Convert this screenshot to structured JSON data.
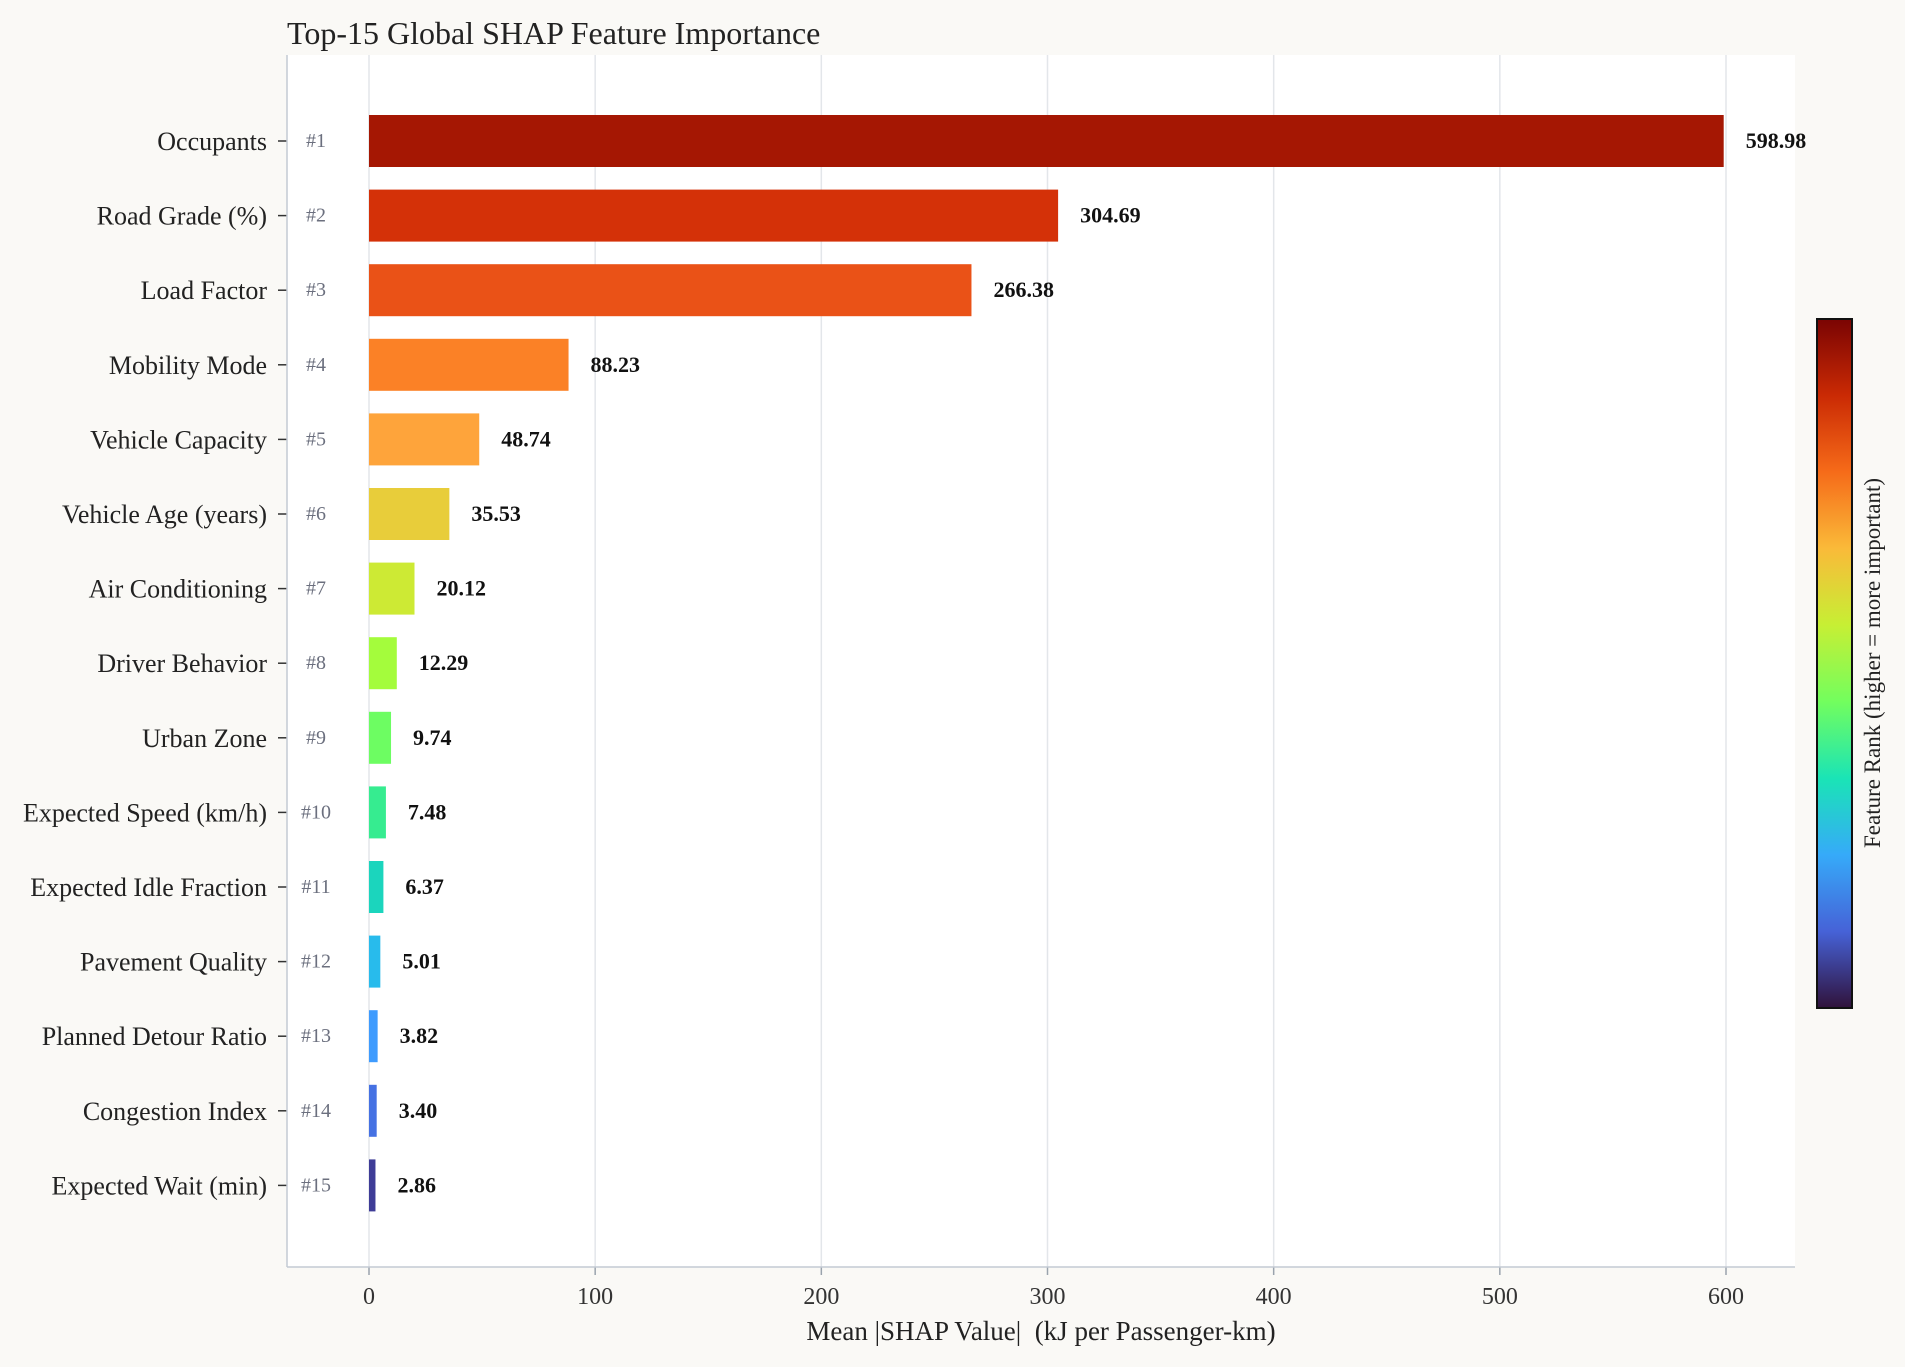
{
  "chart_data": {
    "type": "bar",
    "orientation": "horizontal",
    "title": "Top-15 Global SHAP Feature Importance",
    "xlabel": "Mean |SHAP Value|  (kJ per Passenger-km)",
    "ylabel": "",
    "xlim": [
      -35,
      630
    ],
    "xticks": [
      0,
      100,
      200,
      300,
      400,
      500,
      600
    ],
    "grid": "vertical",
    "categories": [
      "Occupants",
      "Road Grade (%)",
      "Load Factor",
      "Mobility Mode",
      "Vehicle Capacity",
      "Vehicle Age (years)",
      "Air Conditioning",
      "Driver Behavior",
      "Urban Zone",
      "Expected Speed (km/h)",
      "Expected Idle Fraction",
      "Pavement Quality",
      "Planned Detour Ratio",
      "Congestion Index",
      "Expected Wait (min)"
    ],
    "ranks": [
      "#1",
      "#2",
      "#3",
      "#4",
      "#5",
      "#6",
      "#7",
      "#8",
      "#9",
      "#10",
      "#11",
      "#12",
      "#13",
      "#14",
      "#15"
    ],
    "values": [
      598.98,
      304.69,
      266.38,
      88.23,
      48.74,
      35.53,
      20.12,
      12.29,
      9.74,
      7.48,
      6.37,
      5.01,
      3.82,
      3.4,
      2.86
    ],
    "value_labels": [
      "598.98",
      "304.69",
      "266.38",
      "88.23",
      "48.74",
      "35.53",
      "20.12",
      "12.29",
      "9.74",
      "7.48",
      "6.37",
      "5.01",
      "3.82",
      "3.40",
      "2.86"
    ],
    "bar_colors": [
      "#a51703",
      "#d43108",
      "#ea5217",
      "#fb8126",
      "#fea43b",
      "#e8cd3a",
      "#cdea34",
      "#a4fc3c",
      "#6dfd62",
      "#36ec90",
      "#1bd5bd",
      "#28bbec",
      "#3e9bfe",
      "#4571e3",
      "#3e3c97"
    ],
    "colorbar": {
      "label": "Feature Rank (higher = more important)",
      "colormap": "turbo",
      "stops": [
        "#30123b",
        "#4662d7",
        "#36aaf9",
        "#1ae4b6",
        "#72fe5e",
        "#c7ef34",
        "#faba39",
        "#f66b19",
        "#ca2a04",
        "#7a0403"
      ]
    }
  }
}
